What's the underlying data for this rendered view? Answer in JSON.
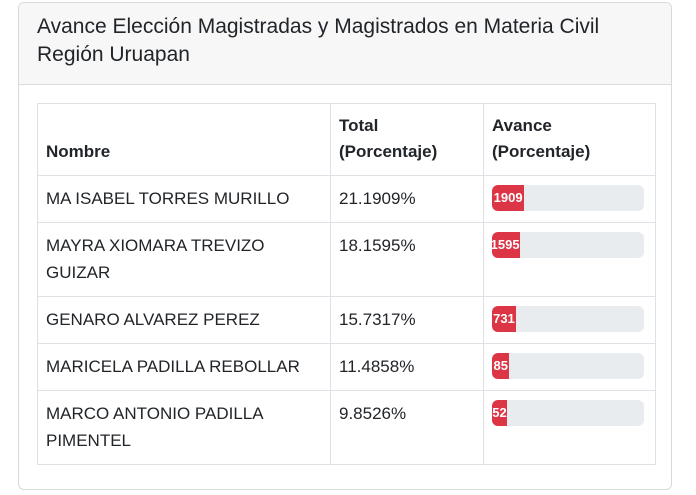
{
  "card": {
    "title_line1": "Avance Elección Magistradas y Magistrados en Materia Civil",
    "title_line2": "Región Uruapan"
  },
  "table": {
    "headers": {
      "name": "Nombre",
      "total_line1": "Total",
      "total_line2": "(Porcentaje)",
      "progress_line1": "Avance",
      "progress_line2": "(Porcentaje)"
    },
    "rows": [
      {
        "name": "MA ISABEL TORRES MURILLO",
        "total": "21.1909%",
        "bar_label": "1909",
        "progress": 21.1909
      },
      {
        "name": "MAYRA XIOMARA TREVIZO GUIZAR",
        "total": "18.1595%",
        "bar_label": "1595",
        "progress": 18.1595
      },
      {
        "name": "GENARO ALVAREZ PEREZ",
        "total": "15.7317%",
        "bar_label": "731",
        "progress": 15.7317
      },
      {
        "name": "MARICELA PADILLA REBOLLAR",
        "total": "11.4858%",
        "bar_label": "85",
        "progress": 11.4858
      },
      {
        "name": "MARCO ANTONIO PADILLA PIMENTEL",
        "total": "9.8526%",
        "bar_label": "52",
        "progress": 9.8526
      }
    ]
  },
  "colors": {
    "bar": "#dc3545",
    "track": "#e9ecef",
    "header_bg": "#f7f7f7"
  }
}
